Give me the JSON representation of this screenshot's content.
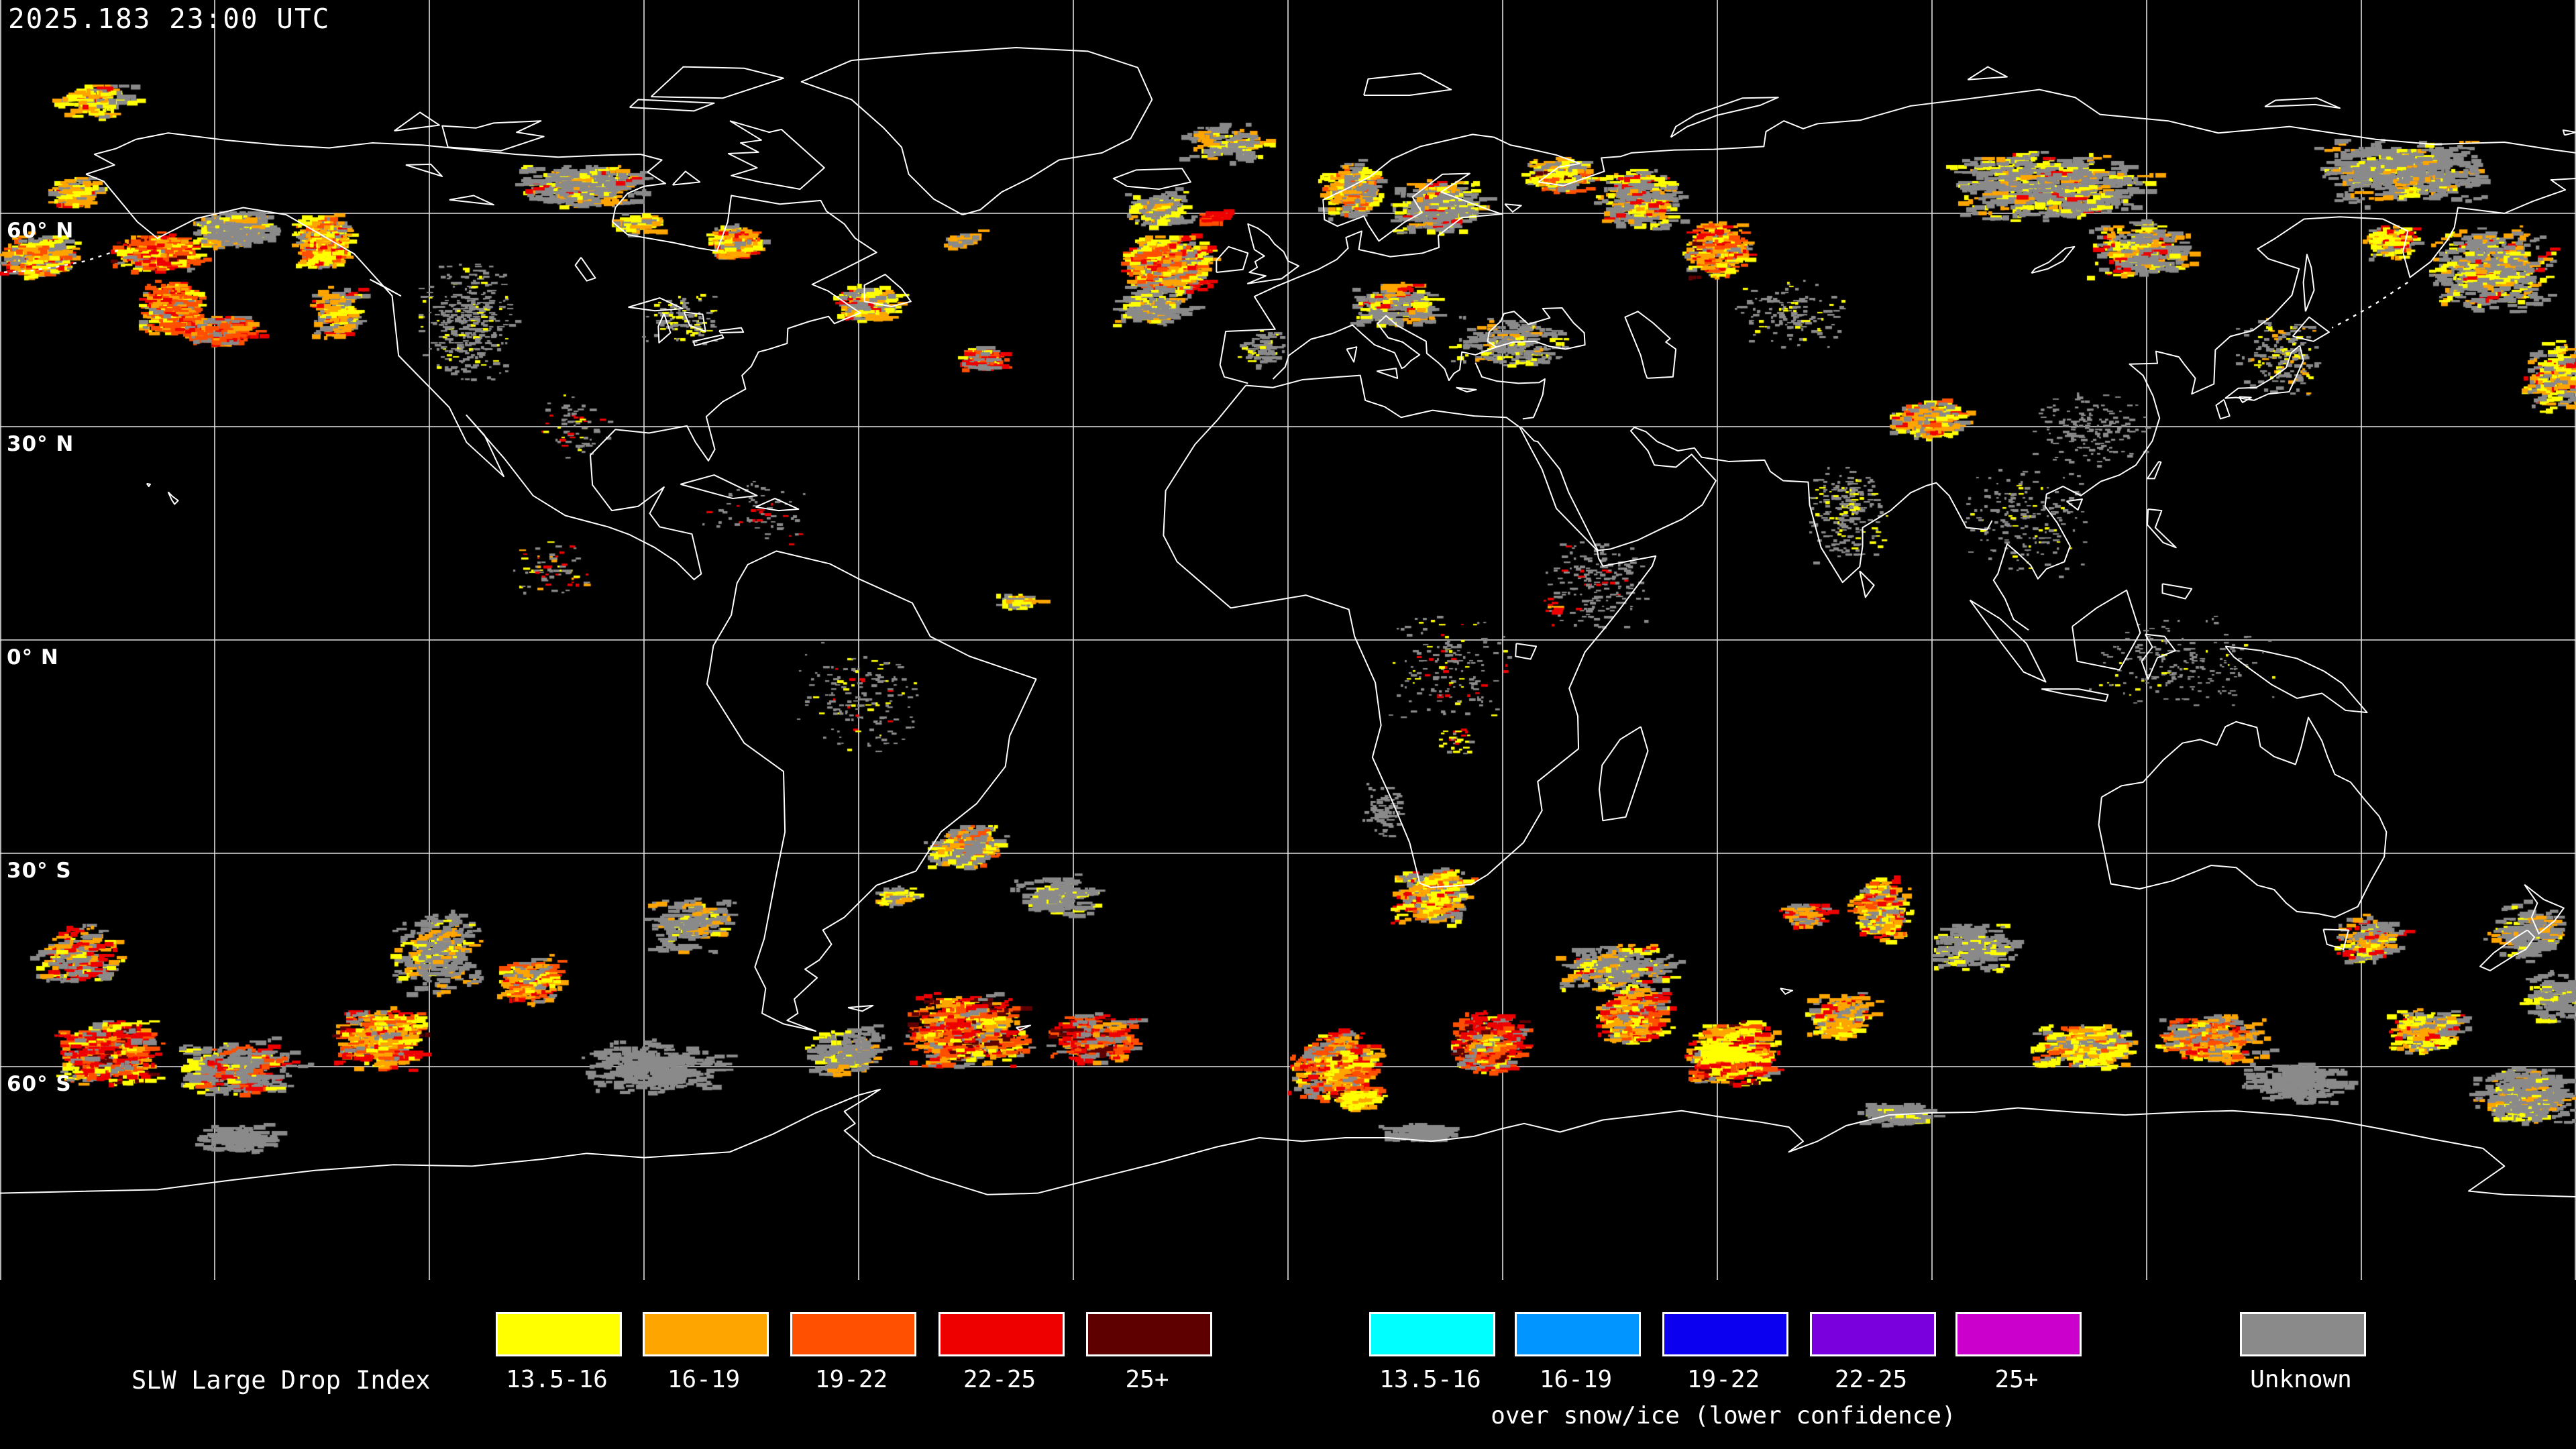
{
  "timestamp": "2025.183 23:00 UTC",
  "map": {
    "lat_labels": [
      {
        "text": "60° N",
        "lat": 60
      },
      {
        "text": "30° N",
        "lat": 30
      },
      {
        "text": "0° N",
        "lat": 0
      },
      {
        "text": "30° S",
        "lat": -30
      },
      {
        "text": "60° S",
        "lat": -60
      }
    ],
    "grid": {
      "lon_min": -180,
      "lon_max": 180,
      "lon_step": 30,
      "lat_lines": [
        60,
        30,
        0,
        -30,
        -60
      ],
      "line_color": "#e2e2e2",
      "coast_color": "#ffffff",
      "background": "#000000"
    }
  },
  "legend": {
    "title": "SLW Large Drop Index",
    "primary": [
      {
        "label": "13.5-16",
        "color": "#ffff00"
      },
      {
        "label": "16-19",
        "color": "#ffa500"
      },
      {
        "label": "19-22",
        "color": "#ff4f00"
      },
      {
        "label": "22-25",
        "color": "#ee0000"
      },
      {
        "label": "25+",
        "color": "#5e0000"
      }
    ],
    "snow_ice": {
      "caption": "over snow/ice (lower confidence)",
      "items": [
        {
          "label": "13.5-16",
          "color": "#00ffff"
        },
        {
          "label": "16-19",
          "color": "#0095ff"
        },
        {
          "label": "19-22",
          "color": "#0b00f0"
        },
        {
          "label": "22-25",
          "color": "#7a00dd"
        },
        {
          "label": "25+",
          "color": "#cc00cc"
        }
      ]
    },
    "unknown": {
      "label": "Unknown",
      "color": "#8a8a8a"
    }
  },
  "palette": {
    "y": "#ffff00",
    "o": "#ffa500",
    "or": "#ff4f00",
    "r": "#ee0000",
    "dr": "#5e0000",
    "g": "#8a8a8a"
  },
  "regions": [
    {
      "lon": -176,
      "lat": 54,
      "dlo": 5,
      "dla": 3,
      "n": 220,
      "a": -25,
      "c": {
        "o": 3,
        "or": 2,
        "y": 2,
        "r": 1,
        "g": 2
      }
    },
    {
      "lon": -159,
      "lat": 54.5,
      "dlo": 6,
      "dla": 2.5,
      "n": 330,
      "a": -20,
      "c": {
        "or": 3,
        "o": 2,
        "y": 2,
        "r": 2,
        "g": 1,
        "dr": 0.5
      }
    },
    {
      "lon": -150,
      "lat": 57.5,
      "dlo": 4,
      "dla": 2.5,
      "n": 140,
      "a": -30,
      "c": {
        "g": 3,
        "o": 1,
        "y": 1
      }
    },
    {
      "lon": -157,
      "lat": 47,
      "dlo": 4,
      "dla": 4,
      "n": 260,
      "a": 40,
      "c": {
        "or": 3,
        "o": 2,
        "r": 1.5,
        "y": 1,
        "g": 1
      }
    },
    {
      "lon": -150,
      "lat": 43.5,
      "dlo": 5,
      "dla": 2,
      "n": 160,
      "a": -15,
      "c": {
        "or": 2,
        "r": 2,
        "o": 1,
        "g": 1
      }
    },
    {
      "lon": -147,
      "lat": 58,
      "dlo": 4.5,
      "dla": 2.2,
      "n": 170,
      "a": -10,
      "c": {
        "g": 5,
        "y": 0.5,
        "o": 0.5
      }
    },
    {
      "lon": -136,
      "lat": 56,
      "dlo": 3.5,
      "dla": 3.5,
      "n": 300,
      "a": -50,
      "c": {
        "o": 3,
        "y": 2.5,
        "or": 2,
        "r": 1.5,
        "g": 2
      }
    },
    {
      "lon": -134,
      "lat": 46,
      "dlo": 3,
      "dla": 4,
      "n": 120,
      "a": -20,
      "c": {
        "o": 2,
        "y": 1.5,
        "g": 2,
        "r": 0.7
      }
    },
    {
      "lon": -115,
      "lat": 45,
      "dlo": 7,
      "dla": 9,
      "n": 420,
      "a": 0,
      "sz": 0.6,
      "c": {
        "g": 1,
        "y": 0.1
      }
    },
    {
      "lon": -100,
      "lat": 30,
      "dlo": 5,
      "dla": 5,
      "n": 70,
      "a": 0,
      "sz": 0.6,
      "c": {
        "g": 1,
        "r": 0.3,
        "y": 0.3
      }
    },
    {
      "lon": -100,
      "lat": 64,
      "dlo": 9,
      "dla": 3,
      "n": 260,
      "a": -15,
      "c": {
        "g": 4,
        "o": 0.7,
        "y": 0.7,
        "r": 0.3
      }
    },
    {
      "lon": -168,
      "lat": 76,
      "dlo": 6,
      "dla": 2.5,
      "n": 90,
      "a": -10,
      "c": {
        "y": 2,
        "o": 1.5,
        "g": 1.5,
        "r": 0.5
      }
    },
    {
      "lon": -171,
      "lat": 63,
      "dlo": 3,
      "dla": 2,
      "n": 70,
      "a": -20,
      "c": {
        "o": 2,
        "y": 1,
        "g": 1,
        "r": 0.6
      }
    },
    {
      "lon": -78.5,
      "lat": 56,
      "dlo": 3,
      "dla": 2.5,
      "n": 180,
      "a": -20,
      "c": {
        "y": 2.5,
        "o": 2,
        "r": 1.5,
        "or": 1,
        "g": 1.5
      }
    },
    {
      "lon": -92,
      "lat": 58.5,
      "dlo": 3,
      "dla": 1.5,
      "n": 60,
      "a": -15,
      "c": {
        "y": 1.5,
        "o": 1,
        "g": 0.7
      }
    },
    {
      "lon": -60,
      "lat": 47.5,
      "dlo": 4,
      "dla": 2.5,
      "n": 160,
      "a": -10,
      "c": {
        "g": 2.5,
        "y": 1.5,
        "o": 1,
        "r": 0.5
      }
    },
    {
      "lon": -47,
      "lat": 56,
      "dlo": 1.5,
      "dla": 1,
      "n": 25,
      "a": -30,
      "c": {
        "o": 2,
        "g": 1
      }
    },
    {
      "lon": -44,
      "lat": 40,
      "dlo": 2.5,
      "dla": 2,
      "n": 70,
      "a": 0,
      "c": {
        "g": 1.5,
        "y": 1,
        "r": 1,
        "or": 0.5
      }
    },
    {
      "lon": -85,
      "lat": 45,
      "dlo": 6,
      "dla": 4,
      "n": 130,
      "a": 0,
      "sz": 0.6,
      "c": {
        "g": 1,
        "y": 0.2
      }
    },
    {
      "lon": -103,
      "lat": 10,
      "dlo": 6,
      "dla": 4,
      "n": 80,
      "a": 0,
      "sz": 0.6,
      "c": {
        "g": 1,
        "r": 0.5,
        "o": 0.3,
        "y": 0.3
      }
    },
    {
      "lon": -75,
      "lat": 18,
      "dlo": 8,
      "dla": 5,
      "n": 70,
      "a": 0,
      "sz": 0.55,
      "c": {
        "g": 1,
        "r": 0.3
      }
    },
    {
      "lon": -18,
      "lat": 53,
      "dlo": 6,
      "dla": 4,
      "n": 420,
      "a": -30,
      "c": {
        "o": 3,
        "or": 2.5,
        "y": 2.5,
        "r": 1.5,
        "g": 2
      }
    },
    {
      "lon": -20,
      "lat": 47,
      "dlo": 5,
      "dla": 3,
      "n": 130,
      "a": -25,
      "c": {
        "g": 2,
        "y": 0.5,
        "o": 0.3
      }
    },
    {
      "lon": -19,
      "lat": 60.5,
      "dlo": 4,
      "dla": 2.5,
      "n": 130,
      "a": -30,
      "c": {
        "g": 2.5,
        "y": 1.5,
        "o": 1
      }
    },
    {
      "lon": -11.5,
      "lat": 59.5,
      "dlo": 1.2,
      "dla": 1,
      "n": 26,
      "a": 0,
      "c": {
        "r": 2,
        "or": 1
      }
    },
    {
      "lon": -10,
      "lat": 70,
      "dlo": 6,
      "dla": 3,
      "n": 80,
      "a": -15,
      "c": {
        "g": 1.5,
        "y": 0.7,
        "o": 0.5
      }
    },
    {
      "lon": 8,
      "lat": 63,
      "dlo": 4,
      "dla": 4,
      "n": 160,
      "a": -55,
      "c": {
        "g": 2,
        "y": 1.5,
        "o": 1,
        "or": 0.5
      }
    },
    {
      "lon": 20,
      "lat": 61,
      "dlo": 6,
      "dla": 4,
      "n": 220,
      "a": -20,
      "c": {
        "g": 3,
        "y": 1,
        "o": 0.7,
        "r": 0.2
      }
    },
    {
      "lon": 37,
      "lat": 65.5,
      "dlo": 4.5,
      "dla": 2.5,
      "n": 170,
      "a": -15,
      "c": {
        "y": 2,
        "o": 1.5,
        "g": 1.5,
        "or": 0.7,
        "dr": 0.3
      }
    },
    {
      "lon": 48,
      "lat": 62,
      "dlo": 6,
      "dla": 4,
      "n": 200,
      "a": -20,
      "c": {
        "g": 2.5,
        "y": 1.2,
        "o": 1,
        "r": 0.4
      }
    },
    {
      "lon": 59,
      "lat": 55,
      "dlo": 4,
      "dla": 4,
      "n": 230,
      "a": -25,
      "c": {
        "o": 2.5,
        "y": 2,
        "or": 1.5,
        "r": 1,
        "g": 1.5,
        "dr": 0.4
      }
    },
    {
      "lon": 14,
      "lat": 47,
      "dlo": 6,
      "dla": 3.5,
      "n": 170,
      "a": -10,
      "c": {
        "g": 2,
        "y": 0.6,
        "o": 0.4,
        "r": 0.2
      }
    },
    {
      "lon": -4,
      "lat": 41,
      "dlo": 3.5,
      "dla": 3,
      "n": 90,
      "a": 0,
      "sz": 0.7,
      "c": {
        "g": 1.5,
        "y": 0.3
      }
    },
    {
      "lon": 30,
      "lat": 42,
      "dlo": 8,
      "dla": 4,
      "n": 160,
      "a": -10,
      "sz": 0.8,
      "c": {
        "g": 2,
        "y": 0.5,
        "o": 0.3
      }
    },
    {
      "lon": 105,
      "lat": 64,
      "dlo": 14,
      "dla": 5,
      "n": 480,
      "a": -10,
      "c": {
        "g": 3,
        "y": 0.8,
        "o": 0.6,
        "r": 0.25
      }
    },
    {
      "lon": 155,
      "lat": 66,
      "dlo": 12,
      "dla": 5,
      "n": 380,
      "a": -15,
      "c": {
        "g": 3,
        "y": 0.5,
        "o": 0.4
      }
    },
    {
      "lon": 167,
      "lat": 52,
      "dlo": 8,
      "dla": 6,
      "n": 330,
      "a": -40,
      "c": {
        "g": 3.5,
        "y": 1,
        "o": 0.8,
        "r": 0.3
      }
    },
    {
      "lon": 153,
      "lat": 56,
      "dlo": 3,
      "dla": 2.5,
      "n": 100,
      "a": -30,
      "c": {
        "y": 1.5,
        "o": 1.2,
        "g": 1,
        "r": 0.4
      }
    },
    {
      "lon": 138,
      "lat": 40,
      "dlo": 6,
      "dla": 6,
      "n": 180,
      "a": -20,
      "sz": 0.7,
      "c": {
        "g": 1.8,
        "y": 0.4,
        "o": 0.3
      }
    },
    {
      "lon": 176,
      "lat": 37,
      "dlo": 4,
      "dla": 5,
      "n": 130,
      "a": -35,
      "c": {
        "y": 1.5,
        "o": 1.2,
        "g": 1.2,
        "r": 0.5
      }
    },
    {
      "lon": 118,
      "lat": 55,
      "dlo": 7,
      "dla": 4,
      "n": 200,
      "a": -20,
      "c": {
        "g": 2,
        "y": 1,
        "o": 0.8,
        "r": 0.3
      }
    },
    {
      "lon": 88,
      "lat": 31,
      "dlo": 5,
      "dla": 2.5,
      "n": 200,
      "a": -25,
      "c": {
        "o": 2,
        "y": 2,
        "g": 1.5,
        "or": 0.7,
        "r": 0.3
      }
    },
    {
      "lon": 78,
      "lat": 18,
      "dlo": 6,
      "dla": 7,
      "n": 220,
      "a": 0,
      "sz": 0.6,
      "c": {
        "g": 1,
        "y": 0.3
      }
    },
    {
      "lon": 103,
      "lat": 17,
      "dlo": 9,
      "dla": 8,
      "n": 200,
      "a": 0,
      "sz": 0.55,
      "c": {
        "g": 1,
        "y": 0.2
      }
    },
    {
      "lon": 112,
      "lat": 30,
      "dlo": 9,
      "dla": 6,
      "n": 170,
      "a": 0,
      "sz": 0.55,
      "c": {
        "g": 1
      }
    },
    {
      "lon": 70,
      "lat": 46,
      "dlo": 8,
      "dla": 5,
      "n": 150,
      "a": 0,
      "sz": 0.6,
      "c": {
        "g": 1,
        "y": 0.3
      }
    },
    {
      "lon": 43,
      "lat": 8,
      "dlo": 8,
      "dla": 7,
      "n": 190,
      "a": 0,
      "sz": 0.6,
      "c": {
        "g": 1,
        "r": 0.1
      }
    },
    {
      "lon": 22,
      "lat": -4,
      "dlo": 10,
      "dla": 8,
      "n": 170,
      "a": 0,
      "sz": 0.55,
      "c": {
        "g": 1,
        "y": 0.25,
        "r": 0.15
      }
    },
    {
      "lon": 125,
      "lat": -3,
      "dlo": 14,
      "dla": 7,
      "n": 200,
      "a": 0,
      "sz": 0.5,
      "c": {
        "g": 1,
        "y": 0.15
      }
    },
    {
      "lon": -60,
      "lat": -8,
      "dlo": 9,
      "dla": 8,
      "n": 170,
      "a": 0,
      "sz": 0.55,
      "c": {
        "g": 1,
        "y": 0.2,
        "r": 0.12
      }
    },
    {
      "lon": -39,
      "lat": 5.5,
      "dlo": 2,
      "dla": 1.2,
      "n": 40,
      "a": -10,
      "c": {
        "y": 2,
        "o": 1,
        "g": 0.5
      }
    },
    {
      "lon": -46,
      "lat": -29,
      "dlo": 5,
      "dla": 3,
      "n": 200,
      "a": -35,
      "c": {
        "g": 2.5,
        "y": 1.2,
        "o": 0.8,
        "or": 0.4
      }
    },
    {
      "lon": -33,
      "lat": -36,
      "dlo": 6,
      "dla": 3,
      "n": 120,
      "a": -25,
      "c": {
        "g": 2,
        "y": 0.3
      }
    },
    {
      "lon": -120,
      "lat": -44,
      "dlo": 6,
      "dla": 6,
      "n": 200,
      "a": -47,
      "c": {
        "g": 2.2,
        "o": 0.6,
        "y": 0.5
      }
    },
    {
      "lon": -85,
      "lat": -40,
      "dlo": 6,
      "dla": 4,
      "n": 130,
      "a": -20,
      "c": {
        "g": 1.8,
        "y": 0.3,
        "o": 0.3
      }
    },
    {
      "lon": 19,
      "lat": -36,
      "dlo": 5,
      "dla": 4,
      "n": 230,
      "a": -30,
      "c": {
        "y": 1.5,
        "o": 1.5,
        "g": 1.8,
        "r": 0.8,
        "or": 0.6
      }
    },
    {
      "lon": 82,
      "lat": -38,
      "dlo": 4,
      "dla": 4.5,
      "n": 200,
      "a": -60,
      "c": {
        "y": 1.8,
        "o": 1.5,
        "r": 1,
        "or": 0.8,
        "g": 1
      }
    },
    {
      "lon": 71,
      "lat": -38.5,
      "dlo": 3,
      "dla": 2,
      "n": 60,
      "a": 0,
      "c": {
        "r": 1.5,
        "o": 0.8,
        "g": 0.8
      }
    },
    {
      "lon": 95,
      "lat": -43,
      "dlo": 6,
      "dla": 3.5,
      "n": 140,
      "a": -30,
      "c": {
        "g": 2,
        "y": 0.4
      }
    },
    {
      "lon": 150,
      "lat": -42,
      "dlo": 4,
      "dla": 3.5,
      "n": 140,
      "a": -25,
      "c": {
        "g": 1.8,
        "o": 1,
        "y": 0.8,
        "r": 0.3
      }
    },
    {
      "lon": 172,
      "lat": -41,
      "dlo": 5,
      "dla": 4,
      "n": 140,
      "a": -20,
      "c": {
        "g": 2,
        "y": 0.4,
        "o": 0.3
      }
    },
    {
      "lon": -166,
      "lat": -58,
      "dlo": 7,
      "dla": 4.5,
      "n": 480,
      "a": -15,
      "c": {
        "r": 3,
        "or": 2,
        "o": 1.5,
        "dr": 1,
        "y": 1,
        "g": 1.5
      }
    },
    {
      "lon": -170,
      "lat": -44,
      "dlo": 6,
      "dla": 4,
      "n": 170,
      "a": -35,
      "c": {
        "o": 1.5,
        "r": 1,
        "g": 1.5,
        "y": 0.7
      }
    },
    {
      "lon": -128,
      "lat": -56,
      "dlo": 6,
      "dla": 4.5,
      "n": 380,
      "a": -20,
      "c": {
        "o": 2.5,
        "y": 2,
        "r": 1.8,
        "or": 1.5,
        "g": 1.2,
        "dr": 0.4
      }
    },
    {
      "lon": -148,
      "lat": -60,
      "dlo": 9,
      "dla": 4,
      "n": 240,
      "a": -15,
      "c": {
        "g": 2.5,
        "or": 0.6,
        "r": 0.5,
        "y": 0.4
      }
    },
    {
      "lon": -107,
      "lat": -48,
      "dlo": 4,
      "dla": 3,
      "n": 170,
      "a": -30,
      "c": {
        "o": 2,
        "or": 1.3,
        "y": 1,
        "r": 0.8,
        "g": 1
      }
    },
    {
      "lon": -63,
      "lat": -58,
      "dlo": 5,
      "dla": 3.5,
      "n": 150,
      "a": -20,
      "c": {
        "g": 2.5,
        "y": 0.4,
        "o": 0.3
      }
    },
    {
      "lon": -46,
      "lat": -55,
      "dlo": 8,
      "dla": 5,
      "n": 600,
      "a": -25,
      "c": {
        "or": 3,
        "o": 2.5,
        "y": 2,
        "r": 2,
        "dr": 1.5,
        "g": 1.5
      }
    },
    {
      "lon": -28,
      "lat": -56,
      "dlo": 6,
      "dla": 3.5,
      "n": 220,
      "a": -15,
      "c": {
        "r": 1.8,
        "dr": 1,
        "or": 1.2,
        "o": 0.8,
        "g": 1.2
      }
    },
    {
      "lon": 6,
      "lat": -60,
      "dlo": 6,
      "dla": 5,
      "n": 420,
      "a": -45,
      "c": {
        "o": 2.5,
        "or": 2,
        "y": 2,
        "r": 1.5,
        "g": 1,
        "dr": 0.5
      }
    },
    {
      "lon": 8.5,
      "lat": -64.5,
      "dlo": 2,
      "dla": 1.5,
      "n": 90,
      "a": -20,
      "c": {
        "y": 3,
        "o": 1
      }
    },
    {
      "lon": 27,
      "lat": -57,
      "dlo": 5,
      "dla": 4,
      "n": 380,
      "a": -50,
      "c": {
        "r": 3,
        "or": 1.5,
        "dr": 1,
        "y": 1,
        "o": 1,
        "g": 0.8
      }
    },
    {
      "lon": 47,
      "lat": -53,
      "dlo": 5,
      "dla": 4,
      "n": 260,
      "a": -30,
      "c": {
        "o": 2,
        "r": 1.5,
        "y": 1.2,
        "g": 1.5,
        "or": 1
      }
    },
    {
      "lon": 61,
      "lat": -58,
      "dlo": 6,
      "dla": 4.5,
      "n": 520,
      "a": -15,
      "c": {
        "y": 2.5,
        "r": 2.5,
        "or": 2,
        "o": 2,
        "dr": 1,
        "g": 1
      }
    },
    {
      "lon": 60,
      "lat": -58,
      "dlo": 3,
      "dla": 1.2,
      "n": 110,
      "a": -10,
      "c": {
        "y": 4
      }
    },
    {
      "lon": 76,
      "lat": -53,
      "dlo": 4,
      "dla": 3,
      "n": 180,
      "a": -30,
      "c": {
        "o": 2,
        "y": 1.2,
        "g": 1.2,
        "r": 0.6
      }
    },
    {
      "lon": 45,
      "lat": -46,
      "dlo": 8,
      "dla": 3.5,
      "n": 200,
      "a": -25,
      "c": {
        "g": 2.5,
        "o": 0.6,
        "y": 0.6,
        "r": 0.3
      }
    },
    {
      "lon": 110,
      "lat": -57,
      "dlo": 7,
      "dla": 3,
      "n": 260,
      "a": -15,
      "c": {
        "y": 2.5,
        "o": 1,
        "g": 1,
        "or": 0.4
      }
    },
    {
      "lon": 128,
      "lat": -56,
      "dlo": 7,
      "dla": 3.5,
      "n": 240,
      "a": -20,
      "c": {
        "o": 2,
        "or": 1.2,
        "g": 1.5,
        "y": 1,
        "r": 0.6
      }
    },
    {
      "lon": 158,
      "lat": -55,
      "dlo": 5,
      "dla": 3,
      "n": 170,
      "a": -25,
      "c": {
        "y": 1.5,
        "o": 1.3,
        "g": 1.3,
        "r": 0.4
      }
    },
    {
      "lon": 172,
      "lat": -64,
      "dlo": 7,
      "dla": 4,
      "n": 280,
      "a": -10,
      "c": {
        "g": 3,
        "y": 0.5,
        "o": 0.4
      }
    },
    {
      "lon": -148,
      "lat": -70,
      "dlo": 6,
      "dla": 2,
      "n": 90,
      "a": 0,
      "c": {
        "g": 1.5
      }
    },
    {
      "lon": 17,
      "lat": -69,
      "dlo": 5,
      "dla": 1.5,
      "n": 80,
      "a": 0,
      "c": {
        "g": 1.5
      }
    },
    {
      "lon": 84,
      "lat": -66.5,
      "dlo": 5,
      "dla": 1.5,
      "n": 90,
      "a": 0,
      "c": {
        "g": 1.5,
        "y": 0.3
      }
    },
    {
      "lon": -90,
      "lat": -60,
      "dlo": 10,
      "dla": 4,
      "n": 200,
      "a": -15,
      "c": {
        "g": 2
      }
    },
    {
      "lon": 140,
      "lat": -62,
      "dlo": 8,
      "dla": 3,
      "n": 140,
      "a": -10,
      "c": {
        "g": 2
      }
    },
    {
      "lon": 176,
      "lat": -50,
      "dlo": 4,
      "dla": 4,
      "n": 100,
      "a": 0,
      "c": {
        "g": 2,
        "y": 0.3
      }
    },
    {
      "lon": -56,
      "lat": -36,
      "dlo": 2,
      "dla": 1.5,
      "n": 50,
      "a": -20,
      "c": {
        "y": 1.5,
        "g": 1,
        "o": 0.5
      }
    },
    {
      "lon": 23,
      "lat": -14,
      "dlo": 2.5,
      "dla": 2,
      "n": 35,
      "a": 0,
      "sz": 0.6,
      "c": {
        "y": 1.2,
        "r": 0.6,
        "g": 0.6
      }
    },
    {
      "lon": 13,
      "lat": -24,
      "dlo": 3,
      "dla": 4,
      "n": 80,
      "a": 0,
      "sz": 0.7,
      "c": {
        "g": 1.5
      }
    },
    {
      "lon": 37,
      "lat": 5,
      "dlo": 1.5,
      "dla": 1.5,
      "n": 20,
      "a": 0,
      "sz": 0.6,
      "c": {
        "r": 1,
        "o": 0.5
      }
    }
  ]
}
